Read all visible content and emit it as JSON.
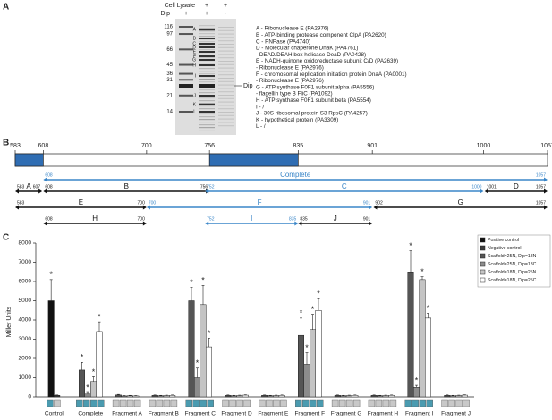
{
  "panel_labels": [
    "A",
    "B",
    "C"
  ],
  "panel_a": {
    "cell_lysate_label": "Cell Lysate",
    "dip_label": "Dip",
    "cell_lysate": [
      "-",
      "+",
      "+"
    ],
    "dip": [
      "+",
      "+",
      "-"
    ],
    "markers": [
      116,
      97,
      66,
      45,
      36,
      31,
      21,
      14
    ],
    "band_letters": [
      "A",
      "B",
      "C",
      "D",
      "E",
      "F",
      "G",
      "H",
      "I",
      "J",
      "K",
      "L"
    ],
    "dip_band_label": "Dip",
    "proteins": [
      "A  - Ribonuclease E (PA2976)",
      "B  - ATP-binding protease component ClpA (PA2620)",
      "C  - PNPase (PA4740)",
      "D  - Molecular chaperone DnaK (PA4761)",
      "     - DEAD/DEAH box helicase DeaD (PA0428)",
      "E  - NADH-quinone oxidoreductase subunit C/D (PA2639)",
      "     - Ribonuclease E (PA2976)",
      "F  - chromosomal replication initiation protein DnaA (PA0001)",
      "     - Ribonuclease E (PA2976)",
      "G  - ATP synthase F0F1 subunit alpha (PA5556)",
      "     - flagellin type B FliC (PA1092)",
      "H  - ATP synthase F0F1 subunit beta (PA5554)",
      "I   - /",
      "J  - 30S ribosomal protein S3 RpsC (PA4257)",
      "K  - hypothetical protein (PA3309)",
      "L  - /"
    ]
  },
  "panel_b": {
    "scale": [
      583,
      608,
      700,
      756,
      835,
      901,
      1000,
      1057
    ],
    "domains": [
      [
        583,
        608
      ],
      [
        756,
        835
      ]
    ],
    "domain_color": "#2f6db3",
    "rows": [
      [
        {
          "name": "Complete",
          "start": 608,
          "end": 1057,
          "color": "#3a86c8"
        }
      ],
      [
        {
          "name": "A",
          "start": 583,
          "end": 607,
          "color": "#111111"
        },
        {
          "name": "B",
          "start": 608,
          "end": 756,
          "color": "#111111"
        },
        {
          "name": "C",
          "start": 752,
          "end": 1000,
          "color": "#3a86c8"
        },
        {
          "name": "D",
          "start": 1001,
          "end": 1057,
          "color": "#111111"
        }
      ],
      [
        {
          "name": "E",
          "start": 583,
          "end": 700,
          "color": "#111111"
        },
        {
          "name": "F",
          "start": 700,
          "end": 901,
          "color": "#3a86c8"
        },
        {
          "name": "G",
          "start": 902,
          "end": 1057,
          "color": "#111111"
        }
      ],
      [
        {
          "name": "H",
          "start": 608,
          "end": 700,
          "color": "#111111"
        },
        {
          "name": "I",
          "start": 752,
          "end": 835,
          "color": "#3a86c8"
        },
        {
          "name": "J",
          "start": 835,
          "end": 901,
          "color": "#111111"
        }
      ]
    ]
  },
  "chart_data": {
    "type": "bar",
    "y_label": "Miller Units",
    "categories": [
      "Control",
      "Complete",
      "Fragment A",
      "Fragment B",
      "Fragment C",
      "Fragment D",
      "Fragment E",
      "Fragment F",
      "Fragment G",
      "Fragment H",
      "Fragment I",
      "Fragment J"
    ],
    "ylim": [
      0,
      8000
    ],
    "yticks": [
      0,
      1000,
      2000,
      3000,
      4000,
      5000,
      6000,
      7000,
      8000
    ],
    "legend": "top-right",
    "series": [
      {
        "name": "Positive control",
        "color": "#111111",
        "values": [
          5000,
          null,
          null,
          null,
          null,
          null,
          null,
          null,
          null,
          null,
          null,
          null
        ],
        "errors": [
          1100,
          null,
          null,
          null,
          null,
          null,
          null,
          null,
          null,
          null,
          null,
          null
        ],
        "annotations": [
          "*",
          null,
          null,
          null,
          null,
          null,
          null,
          null,
          null,
          null,
          null,
          null
        ]
      },
      {
        "name": "Negative control",
        "color": "#3c3c3c",
        "values": [
          80,
          null,
          null,
          null,
          null,
          null,
          null,
          null,
          null,
          null,
          null,
          null
        ],
        "errors": [
          20,
          null,
          null,
          null,
          null,
          null,
          null,
          null,
          null,
          null,
          null,
          null
        ],
        "annotations": [
          null,
          null,
          null,
          null,
          null,
          null,
          null,
          null,
          null,
          null,
          null,
          null
        ]
      },
      {
        "name": "Scaffold=25N, Dip=18N",
        "color": "#555555",
        "values": [
          null,
          1400,
          100,
          80,
          5000,
          80,
          80,
          3200,
          80,
          80,
          6500,
          80
        ],
        "errors": [
          null,
          400,
          30,
          20,
          700,
          20,
          20,
          900,
          20,
          20,
          1100,
          20
        ],
        "annotations": [
          null,
          "*",
          null,
          null,
          "*",
          null,
          null,
          "*",
          null,
          null,
          "*",
          null
        ]
      },
      {
        "name": "Scaffold=25N, Dip=18C",
        "color": "#8c8c8c",
        "values": [
          null,
          150,
          50,
          60,
          1000,
          60,
          60,
          1700,
          60,
          60,
          500,
          60
        ],
        "errors": [
          null,
          80,
          20,
          20,
          500,
          20,
          20,
          600,
          20,
          20,
          100,
          20
        ],
        "annotations": [
          null,
          "*",
          null,
          null,
          "*",
          null,
          null,
          "*",
          null,
          null,
          "*",
          null
        ]
      },
      {
        "name": "Scaffold=18N, Dip=25N",
        "color": "#c4c4c4",
        "values": [
          null,
          800,
          60,
          70,
          4800,
          70,
          70,
          3500,
          70,
          70,
          6100,
          70
        ],
        "errors": [
          null,
          250,
          20,
          20,
          1000,
          20,
          20,
          800,
          20,
          20,
          150,
          20
        ],
        "annotations": [
          null,
          "*",
          null,
          null,
          "*",
          null,
          null,
          "*",
          null,
          null,
          "*",
          null
        ]
      },
      {
        "name": "Scaffold=18N, Dip=25C",
        "color": "#ffffff",
        "values": [
          null,
          3400,
          50,
          80,
          2600,
          90,
          80,
          4500,
          80,
          80,
          4100,
          90
        ],
        "errors": [
          null,
          500,
          20,
          20,
          450,
          20,
          20,
          600,
          20,
          20,
          250,
          20
        ],
        "annotations": [
          null,
          "*",
          null,
          null,
          "*",
          null,
          null,
          "*",
          null,
          null,
          "*",
          null
        ]
      }
    ]
  }
}
